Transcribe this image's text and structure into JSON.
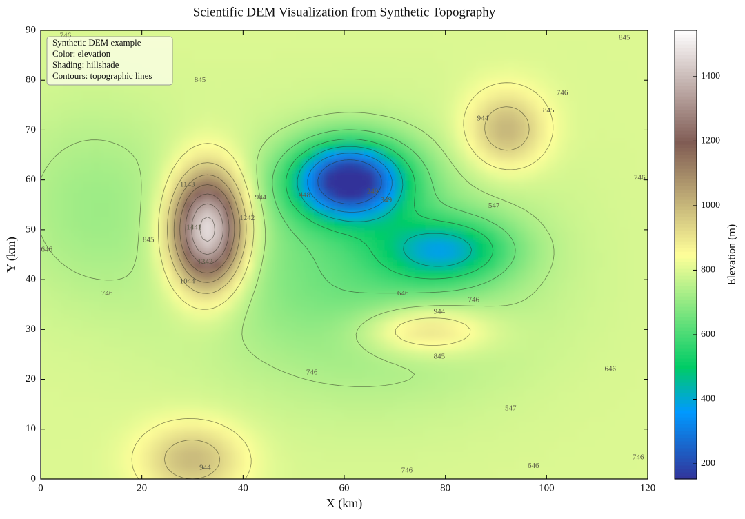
{
  "chart_data": {
    "type": "dem",
    "title": "Scientific DEM Visualization from Synthetic Topography",
    "xlabel": "X (km)",
    "ylabel": "Y (km)",
    "xlim": [
      0,
      120
    ],
    "ylim": [
      0,
      90
    ],
    "xticks": [
      0,
      20,
      40,
      60,
      80,
      100,
      120
    ],
    "yticks": [
      0,
      10,
      20,
      30,
      40,
      50,
      60,
      70,
      80,
      90
    ],
    "colormap": "terrain",
    "clim": [
      153,
      1543
    ],
    "cbar_ticks": [
      200,
      400,
      600,
      800,
      1000,
      1200,
      1400
    ],
    "cbar_label": "Elevation (m)",
    "annotation": [
      "Synthetic DEM example",
      "Color: elevation",
      "Shading: hillshade",
      "Contours: topographic lines"
    ],
    "base_elevation": 800,
    "features": [
      {
        "x": 33,
        "y": 50,
        "elevation": 1540,
        "sigma_x": 5,
        "sigma_y": 8
      },
      {
        "x": 61,
        "y": 60,
        "elevation": 160,
        "sigma_x": 8,
        "sigma_y": 5.5
      },
      {
        "x": 80,
        "y": 46,
        "elevation": 500,
        "sigma_x": 9,
        "sigma_y": 4.5
      },
      {
        "x": 64,
        "y": 42,
        "elevation": 640,
        "sigma_x": 22,
        "sigma_y": 16
      },
      {
        "x": 76,
        "y": 30,
        "elevation": 1000,
        "sigma_x": 9,
        "sigma_y": 3.5
      },
      {
        "x": 92,
        "y": 70,
        "elevation": 1020,
        "sigma_x": 5.5,
        "sigma_y": 5.5
      },
      {
        "x": 30,
        "y": 4,
        "elevation": 1000,
        "sigma_x": 7,
        "sigma_y": 5
      },
      {
        "x": 10,
        "y": 55,
        "elevation": 720,
        "sigma_x": 12,
        "sigma_y": 14
      }
    ],
    "contour_levels": [
      249,
      349,
      448,
      547,
      646,
      746,
      845,
      944,
      1044,
      1143,
      1242,
      1342,
      1441
    ],
    "contour_labels": [
      {
        "value": 845,
        "x": 31.5,
        "y": 80
      },
      {
        "value": 1143,
        "x": 29,
        "y": 59
      },
      {
        "value": 944,
        "x": 43.5,
        "y": 56.4
      },
      {
        "value": 1242,
        "x": 40.8,
        "y": 52.3
      },
      {
        "value": 1441,
        "x": 30.3,
        "y": 50.4
      },
      {
        "value": 1342,
        "x": 32.5,
        "y": 43.5
      },
      {
        "value": 1044,
        "x": 29,
        "y": 39.6
      },
      {
        "value": 845,
        "x": 21.3,
        "y": 47.9
      },
      {
        "value": 646,
        "x": 1.2,
        "y": 46
      },
      {
        "value": 746,
        "x": 13.1,
        "y": 37.2
      },
      {
        "value": 249,
        "x": 65.6,
        "y": 57.6
      },
      {
        "value": 349,
        "x": 68.3,
        "y": 55.9
      },
      {
        "value": 448,
        "x": 52.2,
        "y": 56.9
      },
      {
        "value": 547,
        "x": 89.6,
        "y": 54.8
      },
      {
        "value": 646,
        "x": 71.6,
        "y": 37.2
      },
      {
        "value": 746,
        "x": 85.6,
        "y": 35.9
      },
      {
        "value": 944,
        "x": 78.8,
        "y": 33.5
      },
      {
        "value": 845,
        "x": 78.8,
        "y": 24.5
      },
      {
        "value": 746,
        "x": 53.6,
        "y": 21.3
      },
      {
        "value": 547,
        "x": 92.9,
        "y": 14.1
      },
      {
        "value": 646,
        "x": 112.6,
        "y": 22
      },
      {
        "value": 746,
        "x": 118.4,
        "y": 60.4
      },
      {
        "value": 845,
        "x": 115.4,
        "y": 88.5
      },
      {
        "value": 746,
        "x": 103.1,
        "y": 77.4
      },
      {
        "value": 845,
        "x": 100.4,
        "y": 73.9
      },
      {
        "value": 944,
        "x": 87.4,
        "y": 72.3
      },
      {
        "value": 746,
        "x": 72.4,
        "y": 1.7
      },
      {
        "value": 646,
        "x": 97.4,
        "y": 2.6
      },
      {
        "value": 746,
        "x": 118.1,
        "y": 4.3
      },
      {
        "value": 944,
        "x": 32.5,
        "y": 2.2
      },
      {
        "value": 746,
        "x": 4.9,
        "y": 88.9
      }
    ]
  }
}
